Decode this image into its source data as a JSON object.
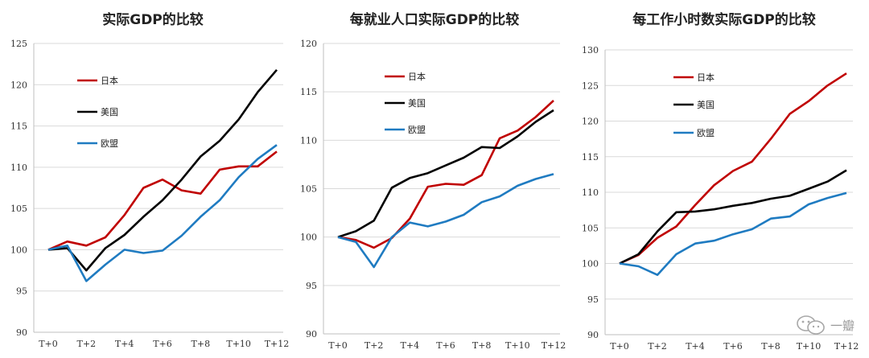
{
  "chart_data": [
    {
      "type": "line",
      "title": "实际GDP的比较",
      "x": [
        "T+0",
        "T+1",
        "T+2",
        "T+3",
        "T+4",
        "T+5",
        "T+6",
        "T+7",
        "T+8",
        "T+9",
        "T+10",
        "T+11",
        "T+12"
      ],
      "x_tick_labels": [
        "T+0",
        "T+2",
        "T+4",
        "T+6",
        "T+8",
        "T+10",
        "T+12"
      ],
      "ylim": [
        90,
        125
      ],
      "yticks": [
        90,
        95,
        100,
        105,
        110,
        115,
        120,
        125
      ],
      "grid": "horizontal",
      "legend": "upper-left",
      "series": [
        {
          "name": "日本",
          "color": "#c00000",
          "values": [
            100,
            101,
            100.5,
            101.5,
            104.2,
            107.5,
            108.5,
            107.2,
            106.8,
            109.7,
            110.1,
            110.1,
            111.9
          ]
        },
        {
          "name": "美国",
          "color": "#000000",
          "values": [
            100,
            100.2,
            97.5,
            100.2,
            101.8,
            104,
            106,
            108.5,
            111.3,
            113.2,
            115.8,
            119.1,
            121.8
          ]
        },
        {
          "name": "欧盟",
          "color": "#1f7bc1",
          "values": [
            100,
            100.5,
            96.2,
            98.2,
            100,
            99.6,
            99.9,
            101.7,
            104,
            106,
            108.8,
            111,
            112.7
          ]
        }
      ]
    },
    {
      "type": "line",
      "title": "每就业人口实际GDP的比较",
      "x": [
        "T+0",
        "T+1",
        "T+2",
        "T+3",
        "T+4",
        "T+5",
        "T+6",
        "T+7",
        "T+8",
        "T+9",
        "T+10",
        "T+11",
        "T+12"
      ],
      "x_tick_labels": [
        "T+0",
        "T+2",
        "T+4",
        "T+6",
        "T+8",
        "T+10",
        "T+12"
      ],
      "ylim": [
        90,
        120
      ],
      "yticks": [
        90,
        95,
        100,
        105,
        110,
        115,
        120
      ],
      "grid": "horizontal",
      "legend": "upper-left",
      "series": [
        {
          "name": "日本",
          "color": "#c00000",
          "values": [
            100,
            99.7,
            98.9,
            99.9,
            101.9,
            105.2,
            105.5,
            105.4,
            106.4,
            110.2,
            111,
            112.4,
            114.1
          ]
        },
        {
          "name": "美国",
          "color": "#000000",
          "values": [
            100,
            100.6,
            101.7,
            105.1,
            106.1,
            106.6,
            107.4,
            108.2,
            109.3,
            109.2,
            110.4,
            111.9,
            113.1
          ]
        },
        {
          "name": "欧盟",
          "color": "#1f7bc1",
          "values": [
            100,
            99.5,
            96.9,
            100,
            101.5,
            101.1,
            101.6,
            102.3,
            103.6,
            104.2,
            105.3,
            106,
            106.5
          ]
        }
      ]
    },
    {
      "type": "line",
      "title": "每工作小时数实际GDP的比较",
      "x": [
        "T+0",
        "T+1",
        "T+2",
        "T+3",
        "T+4",
        "T+5",
        "T+6",
        "T+7",
        "T+8",
        "T+9",
        "T+10",
        "T+11",
        "T+12"
      ],
      "x_tick_labels": [
        "T+0",
        "T+2",
        "T+4",
        "T+6",
        "T+8",
        "T+10",
        "T+12"
      ],
      "ylim": [
        90,
        130
      ],
      "yticks": [
        90,
        95,
        100,
        105,
        110,
        115,
        120,
        125,
        130
      ],
      "grid": "horizontal",
      "legend": "upper-left",
      "series": [
        {
          "name": "日本",
          "color": "#c00000",
          "values": [
            100,
            101.2,
            103.6,
            105.2,
            108.2,
            111,
            113,
            114.3,
            117.5,
            121,
            122.8,
            125,
            126.7
          ]
        },
        {
          "name": "美国",
          "color": "#000000",
          "values": [
            100,
            101.3,
            104.5,
            107.2,
            107.3,
            107.6,
            108.1,
            108.5,
            109.1,
            109.5,
            110.5,
            111.5,
            113.1
          ]
        },
        {
          "name": "欧盟",
          "color": "#1f7bc1",
          "values": [
            100,
            99.6,
            98.4,
            101.3,
            102.8,
            103.2,
            104.1,
            104.8,
            106.3,
            106.6,
            108.3,
            109.2,
            109.9
          ]
        }
      ]
    }
  ],
  "watermark": {
    "text": "一瓣",
    "icon": "wechat-icon"
  }
}
